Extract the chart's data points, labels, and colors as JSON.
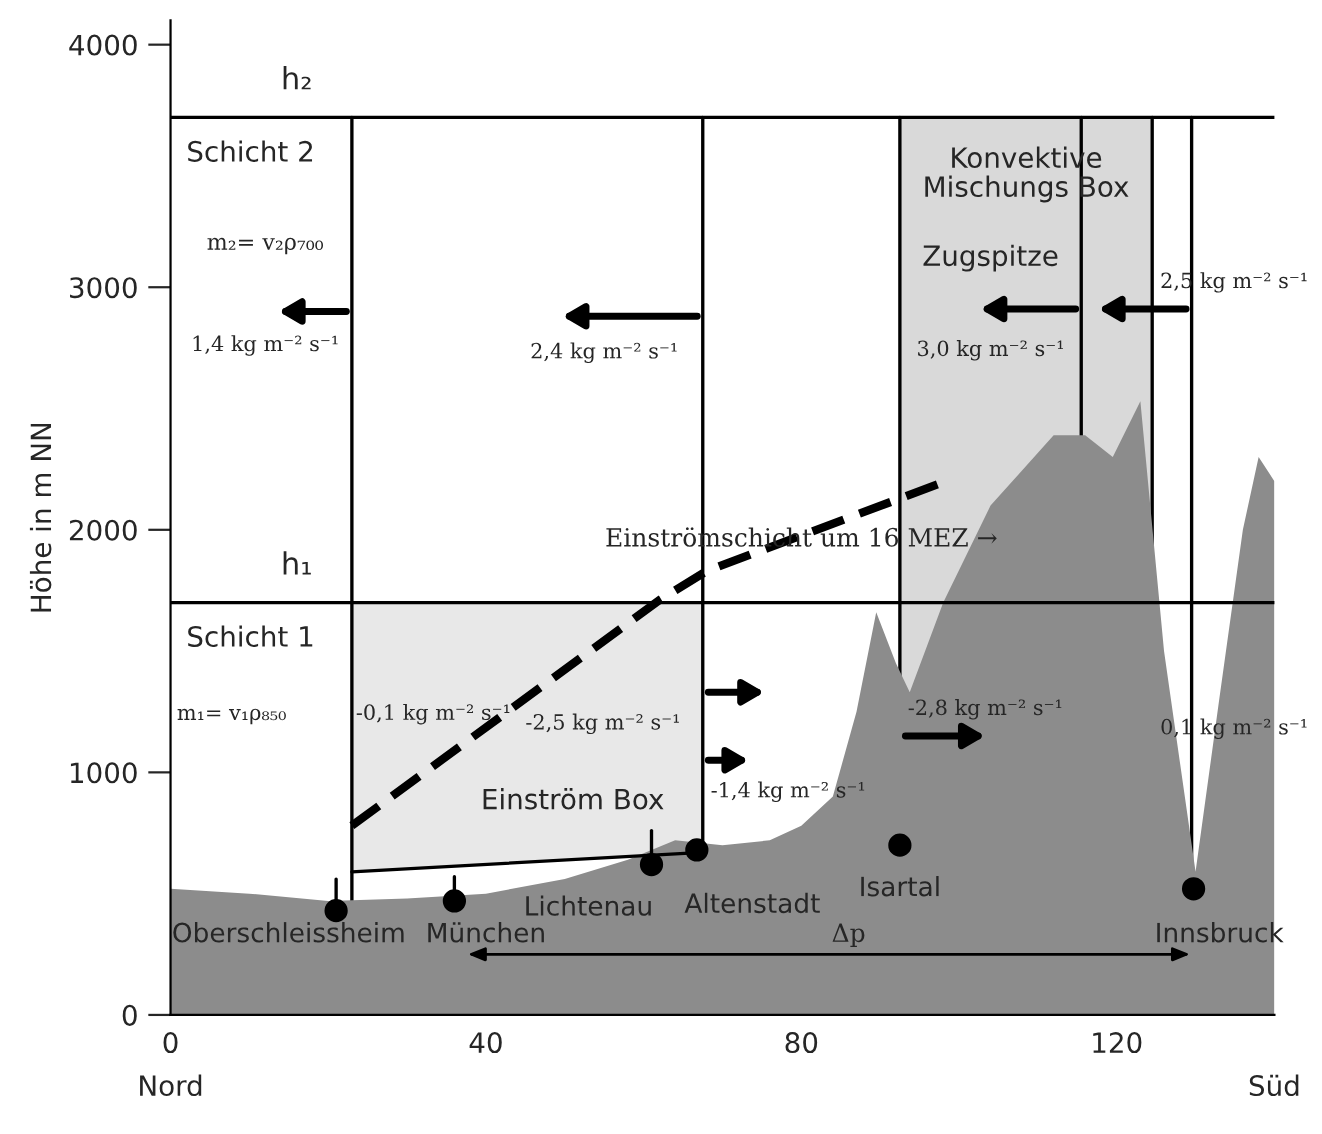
{
  "chart_data": {
    "type": "area",
    "ylabel": "Höhe in m NN",
    "x": [
      0,
      10,
      20,
      30,
      40,
      50,
      58,
      64,
      70,
      76,
      80,
      84,
      87,
      89.5,
      92,
      93.75,
      98,
      104,
      112,
      116,
      119.5,
      123,
      126,
      130,
      133,
      136,
      138,
      140
    ],
    "series": [
      {
        "color": "#8c8c8c",
        "values": [
          520,
          500,
          470,
          480,
          500,
          560,
          640,
          720,
          700,
          720,
          780,
          900,
          1250,
          1660,
          1450,
          1330,
          1700,
          2100,
          2390,
          2390,
          2300,
          2530,
          1500,
          590,
          1300,
          2000,
          2300,
          2200
        ]
      },
      {
        "type": "line",
        "color": "#000000",
        "line_style": "dashed",
        "x": [
          23,
          62,
          68,
          97.5
        ],
        "values": [
          780,
          1710,
          1830,
          2190
        ]
      },
      {
        "type": "scatter",
        "color": "#000000",
        "marker": "circle",
        "x": [
          21,
          36,
          61,
          66.75,
          92.5,
          129.75
        ],
        "values": [
          430,
          470,
          620,
          680,
          700,
          520
        ]
      }
    ],
    "xlim": [
      0,
      140
    ],
    "ylim": [
      0,
      4100
    ],
    "xticks": [
      0,
      40,
      80,
      120
    ],
    "yticks": [
      0,
      1000,
      2000,
      3000,
      4000
    ],
    "grid": false,
    "legend": false,
    "ref_lines": [
      {
        "axis": "y",
        "value": 1700,
        "label": "h₁"
      },
      {
        "axis": "y",
        "value": 3700,
        "label": "h₂"
      },
      {
        "axis": "x",
        "value": 23
      },
      {
        "axis": "x",
        "value": 67.5
      },
      {
        "axis": "x",
        "value": 92.5
      },
      {
        "axis": "x",
        "value": 115.5
      },
      {
        "axis": "x",
        "value": 124.5
      },
      {
        "axis": "x",
        "value": 129.5
      }
    ],
    "bands": [
      {
        "axis": "x",
        "from": 92.5,
        "to": 124.5,
        "label": "Konvektive\nMischungs Box",
        "color": "#d9d9d9"
      }
    ],
    "annotations": [
      "Schicht 2",
      "m₂= v₂ρ₇₀₀",
      "1,4 kg m⁻² s⁻¹",
      "2,4 kg m⁻² s⁻¹",
      "Zugspitze",
      "3,0 kg m⁻² s⁻¹",
      "2,5 kg m⁻² s⁻¹",
      "Einströmschicht um 16 MEZ →",
      "Schicht 1",
      "m₁= v₁ρ₈₅₀",
      "-0,1 kg m⁻² s⁻¹",
      "-2,5 kg m⁻² s⁻¹",
      "-1,4 kg m⁻² s⁻¹",
      "-2,8 kg m⁻² s⁻¹",
      "0,1 kg m⁻² s⁻¹",
      "Einström Box",
      "Δp",
      "Oberschleissheim",
      "München",
      "Lichtenau",
      {
        "text": "Altenstadt",
        "x": 66.75,
        "y": 680
      },
      "Isartal",
      "Innsbruck",
      "Nord",
      "Süd"
    ]
  }
}
